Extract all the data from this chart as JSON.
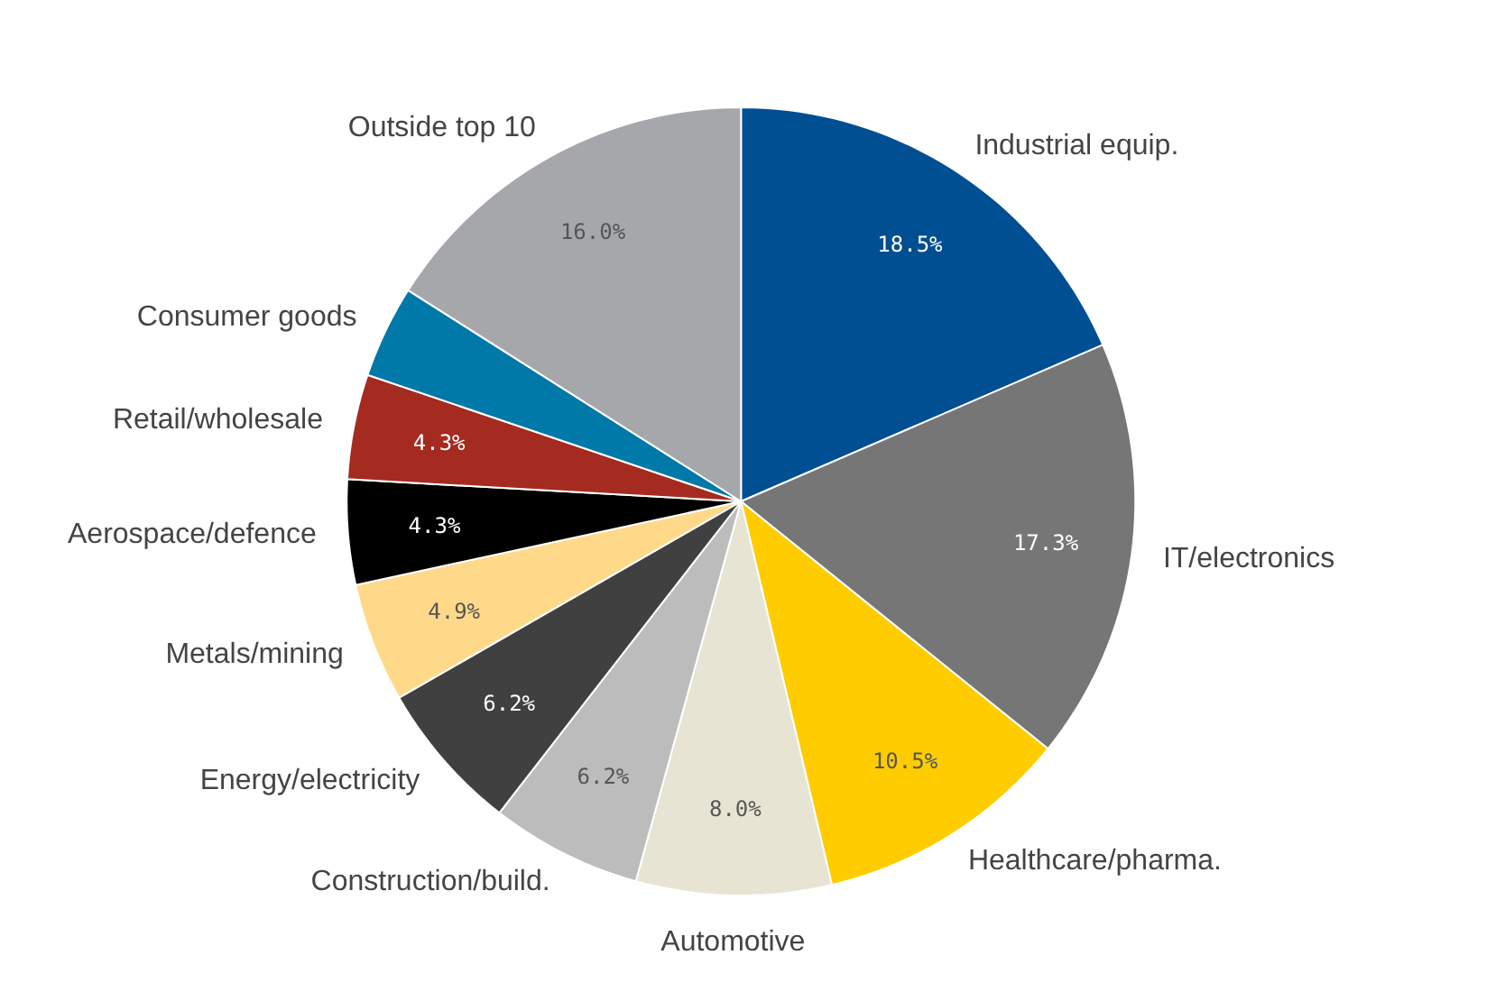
{
  "chart_data": {
    "type": "pie",
    "categories": [
      "Industrial equip.",
      "IT/electronics",
      "Healthcare/pharma.",
      "Automotive",
      "Construction/build.",
      "Energy/electricity",
      "Metals/mining",
      "Aerospace/defence",
      "Retail/wholesale",
      "Consumer goods",
      "Outside top 10"
    ],
    "values": [
      18.5,
      17.3,
      10.5,
      8.0,
      6.2,
      6.2,
      4.9,
      4.3,
      4.3,
      3.8,
      16.0
    ],
    "colors": [
      "#004f93",
      "#767676",
      "#ffcc00",
      "#e8e4d4",
      "#bcbcbc",
      "#404040",
      "#ffd98a",
      "#000000",
      "#a52a1f",
      "#0078a8",
      "#a5a7ab"
    ],
    "value_labels": [
      "18.5%",
      "17.3%",
      "10.5%",
      "8.0%",
      "6.2%",
      "6.2%",
      "4.9%",
      "4.3%",
      "4.3%",
      null,
      "16.0%"
    ]
  }
}
